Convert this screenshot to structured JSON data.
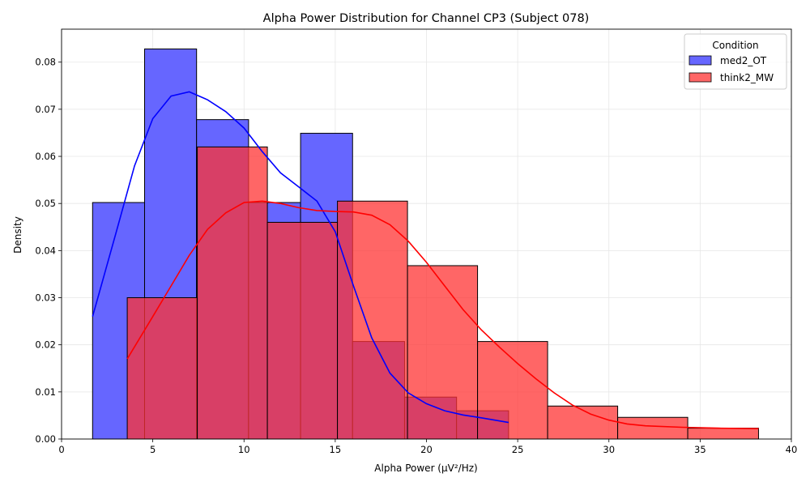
{
  "chart_data": {
    "type": "histogram",
    "title": "Alpha Power Distribution for Channel CP3 (Subject 078)",
    "xlabel": "Alpha Power (µV²/Hz)",
    "ylabel": "Density",
    "xlim": [
      0,
      40
    ],
    "ylim": [
      0,
      0.087
    ],
    "xticks": [
      0,
      5,
      10,
      15,
      20,
      25,
      30,
      35,
      40
    ],
    "xtick_labels": [
      "0",
      "5",
      "10",
      "15",
      "20",
      "25",
      "30",
      "35",
      "40"
    ],
    "yticks": [
      0,
      0.01,
      0.02,
      0.03,
      0.04,
      0.05,
      0.06,
      0.07,
      0.08
    ],
    "ytick_labels": [
      "0.00",
      "0.01",
      "0.02",
      "0.03",
      "0.04",
      "0.05",
      "0.06",
      "0.07",
      "0.08"
    ],
    "grid": true,
    "legend": {
      "title": "Condition",
      "position": "upper right"
    },
    "series": [
      {
        "name": "med2_OT",
        "fill_color": "#6666ff",
        "line_color": "#0000ff",
        "bins": [
          {
            "x0": 1.7,
            "x1": 4.55,
            "density": 0.0502
          },
          {
            "x0": 4.55,
            "x1": 7.4,
            "density": 0.0828
          },
          {
            "x0": 7.4,
            "x1": 10.25,
            "density": 0.0678
          },
          {
            "x0": 10.25,
            "x1": 13.1,
            "density": 0.0502
          },
          {
            "x0": 13.1,
            "x1": 15.95,
            "density": 0.0649
          },
          {
            "x0": 15.95,
            "x1": 18.8,
            "density": 0.0207
          },
          {
            "x0": 18.8,
            "x1": 21.65,
            "density": 0.0089
          },
          {
            "x0": 21.65,
            "x1": 24.5,
            "density": 0.006
          }
        ],
        "kde": [
          [
            1.7,
            0.026
          ],
          [
            3.0,
            0.044
          ],
          [
            4.0,
            0.058
          ],
          [
            5.0,
            0.068
          ],
          [
            6.0,
            0.0728
          ],
          [
            7.0,
            0.0737
          ],
          [
            8.0,
            0.072
          ],
          [
            9.0,
            0.0695
          ],
          [
            10.0,
            0.066
          ],
          [
            11.0,
            0.061
          ],
          [
            12.0,
            0.0565
          ],
          [
            13.0,
            0.0535
          ],
          [
            14.0,
            0.0505
          ],
          [
            15.0,
            0.044
          ],
          [
            16.0,
            0.0325
          ],
          [
            17.0,
            0.0215
          ],
          [
            18.0,
            0.014
          ],
          [
            19.0,
            0.0098
          ],
          [
            20.0,
            0.0075
          ],
          [
            21.0,
            0.006
          ],
          [
            22.0,
            0.0051
          ],
          [
            23.0,
            0.0045
          ],
          [
            24.5,
            0.0035
          ]
        ]
      },
      {
        "name": "think2_MW",
        "fill_color": "#ff3333",
        "line_color": "#ff0000",
        "bins": [
          {
            "x0": 3.6,
            "x1": 7.44,
            "density": 0.03
          },
          {
            "x0": 7.44,
            "x1": 11.28,
            "density": 0.062
          },
          {
            "x0": 11.28,
            "x1": 15.12,
            "density": 0.046
          },
          {
            "x0": 15.12,
            "x1": 18.96,
            "density": 0.0505
          },
          {
            "x0": 18.96,
            "x1": 22.8,
            "density": 0.0368
          },
          {
            "x0": 22.8,
            "x1": 26.64,
            "density": 0.0207
          },
          {
            "x0": 26.64,
            "x1": 30.48,
            "density": 0.007
          },
          {
            "x0": 30.48,
            "x1": 34.32,
            "density": 0.0046
          },
          {
            "x0": 34.32,
            "x1": 38.2,
            "density": 0.0023
          }
        ],
        "kde": [
          [
            3.6,
            0.017
          ],
          [
            5.0,
            0.026
          ],
          [
            6.0,
            0.0325
          ],
          [
            7.0,
            0.039
          ],
          [
            8.0,
            0.0445
          ],
          [
            9.0,
            0.048
          ],
          [
            10.0,
            0.0502
          ],
          [
            11.0,
            0.0505
          ],
          [
            12.0,
            0.05
          ],
          [
            13.0,
            0.0491
          ],
          [
            14.0,
            0.0485
          ],
          [
            15.0,
            0.0483
          ],
          [
            16.0,
            0.0482
          ],
          [
            17.0,
            0.0475
          ],
          [
            18.0,
            0.0455
          ],
          [
            19.0,
            0.042
          ],
          [
            20.0,
            0.0375
          ],
          [
            21.0,
            0.0325
          ],
          [
            22.0,
            0.0275
          ],
          [
            23.0,
            0.0232
          ],
          [
            24.0,
            0.0195
          ],
          [
            25.0,
            0.016
          ],
          [
            26.0,
            0.0128
          ],
          [
            27.0,
            0.0098
          ],
          [
            28.0,
            0.0072
          ],
          [
            29.0,
            0.0053
          ],
          [
            30.0,
            0.004
          ],
          [
            31.0,
            0.0032
          ],
          [
            32.0,
            0.0028
          ],
          [
            34.0,
            0.0025
          ],
          [
            36.0,
            0.0023
          ],
          [
            38.2,
            0.0022
          ]
        ]
      }
    ]
  }
}
